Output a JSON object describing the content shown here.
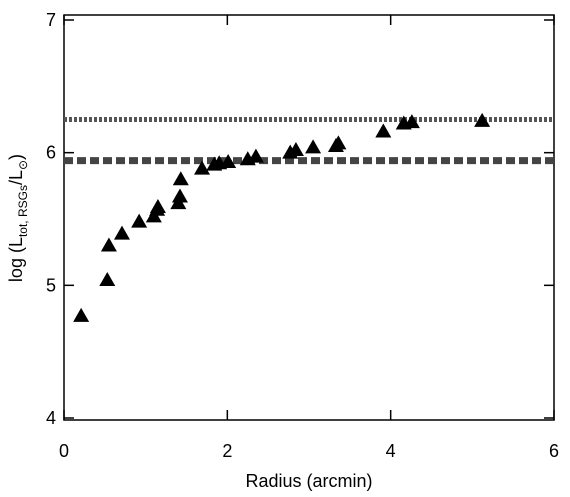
{
  "chart_data": {
    "type": "scatter",
    "x_label": "Radius (arcmin)",
    "y_label": [
      "log (L",
      "tot, RSGs",
      "/L",
      "⊙",
      ")"
    ],
    "xlim": [
      0,
      6
    ],
    "ylim": [
      4,
      7
    ],
    "xticks": [
      0,
      2,
      4,
      6
    ],
    "yticks": [
      4,
      5,
      6,
      7
    ],
    "color": "#000000",
    "series": [
      {
        "x": [
          0.21,
          0.53,
          0.55,
          0.71,
          0.92,
          1.1,
          1.14,
          1.15,
          1.4,
          1.42,
          1.43,
          1.69,
          1.84,
          1.9,
          2.01,
          2.25,
          2.35,
          2.77,
          2.84,
          3.05,
          3.33,
          3.36,
          3.91,
          4.16,
          4.26,
          5.12
        ],
        "values": [
          4.77,
          5.04,
          5.3,
          5.39,
          5.48,
          5.52,
          5.57,
          5.59,
          5.62,
          5.67,
          5.8,
          5.88,
          5.91,
          5.92,
          5.93,
          5.95,
          5.97,
          6.0,
          6.02,
          6.04,
          6.05,
          6.07,
          6.16,
          6.22,
          6.23,
          6.24
        ]
      }
    ],
    "hlines": [
      {
        "value": 6.25,
        "style": "dotted",
        "color": "#555555"
      },
      {
        "value": 5.94,
        "style": "dashed",
        "color": "#444444"
      }
    ]
  }
}
